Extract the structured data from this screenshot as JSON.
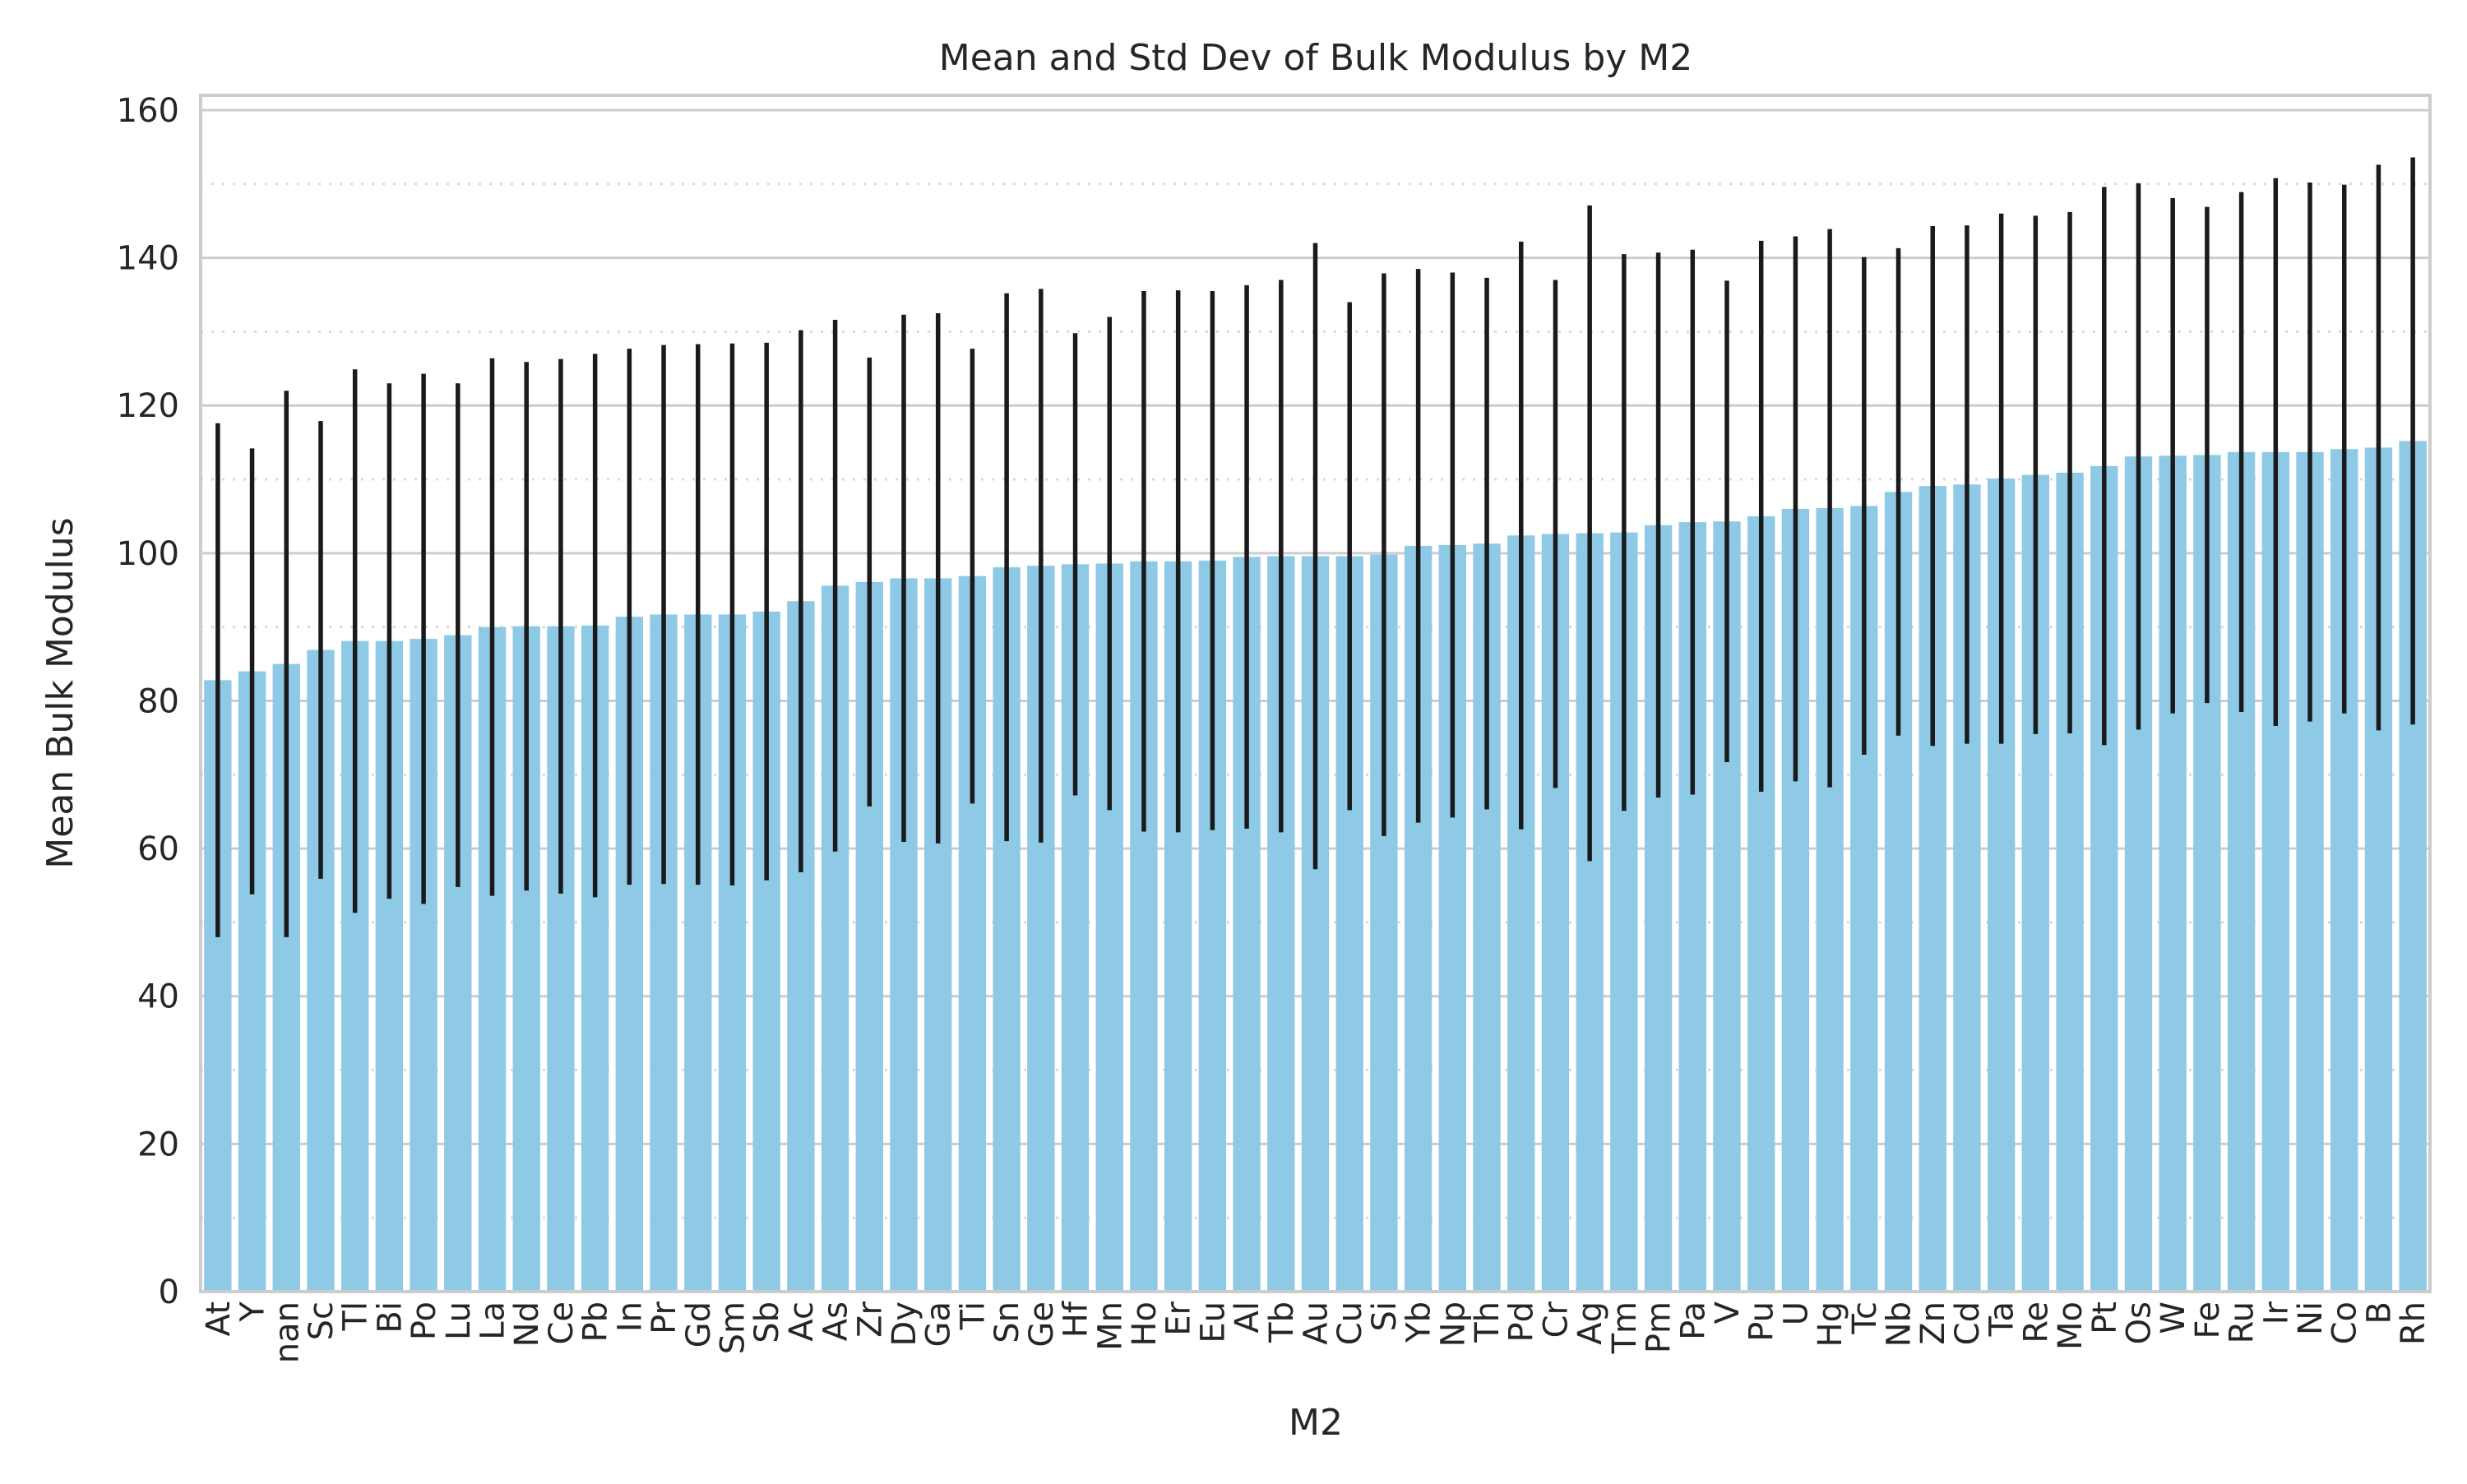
{
  "chart_data": {
    "type": "bar",
    "title": "Mean and Std Dev of Bulk Modulus by M2",
    "xlabel": "M2",
    "ylabel": "Mean Bulk Modulus",
    "ylim": [
      0,
      162
    ],
    "yticks": [
      0,
      20,
      40,
      60,
      80,
      100,
      120,
      140,
      160
    ],
    "grid": true,
    "bar_color": "#8ecae6",
    "error_color": "#1a1a1a",
    "categories": [
      "At",
      "Y",
      "nan",
      "Sc",
      "Tl",
      "Bi",
      "Po",
      "Lu",
      "La",
      "Nd",
      "Ce",
      "Pb",
      "In",
      "Pr",
      "Gd",
      "Sm",
      "Sb",
      "Ac",
      "As",
      "Zr",
      "Dy",
      "Ga",
      "Ti",
      "Sn",
      "Ge",
      "Hf",
      "Mn",
      "Ho",
      "Er",
      "Eu",
      "Al",
      "Tb",
      "Au",
      "Cu",
      "Si",
      "Yb",
      "Np",
      "Th",
      "Pd",
      "Cr",
      "Ag",
      "Tm",
      "Pm",
      "Pa",
      "V",
      "Pu",
      "U",
      "Hg",
      "Tc",
      "Nb",
      "Zn",
      "Cd",
      "Ta",
      "Re",
      "Mo",
      "Pt",
      "Os",
      "W",
      "Fe",
      "Ru",
      "Ir",
      "Ni",
      "Co",
      "B",
      "Rh"
    ],
    "values": [
      82.8,
      84.0,
      85.0,
      86.9,
      88.1,
      88.1,
      88.4,
      88.9,
      90.0,
      90.1,
      90.1,
      90.2,
      91.4,
      91.7,
      91.7,
      91.7,
      92.1,
      93.5,
      95.6,
      96.1,
      96.6,
      96.6,
      96.9,
      98.1,
      98.3,
      98.5,
      98.6,
      98.9,
      98.9,
      99.0,
      99.5,
      99.6,
      99.6,
      99.6,
      99.8,
      101.0,
      101.1,
      101.3,
      102.4,
      102.6,
      102.7,
      102.8,
      103.8,
      104.2,
      104.3,
      105.0,
      106.0,
      106.1,
      106.4,
      108.3,
      109.1,
      109.3,
      110.1,
      110.6,
      110.9,
      111.8,
      113.1,
      113.2,
      113.3,
      113.7,
      113.7,
      113.7,
      114.1,
      114.3,
      115.2
    ],
    "std": [
      34.8,
      30.2,
      37.0,
      31.0,
      36.8,
      34.9,
      35.9,
      34.1,
      36.4,
      35.8,
      36.2,
      36.8,
      36.3,
      36.5,
      36.6,
      36.7,
      36.4,
      36.7,
      36.0,
      30.4,
      35.7,
      35.9,
      30.8,
      37.1,
      37.5,
      31.3,
      33.4,
      36.6,
      36.7,
      36.5,
      36.8,
      37.4,
      42.4,
      34.4,
      38.1,
      37.5,
      36.9,
      36.0,
      39.8,
      34.4,
      44.4,
      37.7,
      36.9,
      36.9,
      32.6,
      37.3,
      36.9,
      37.8,
      33.7,
      33.0,
      35.2,
      35.1,
      35.9,
      35.1,
      35.3,
      37.8,
      37.0,
      34.9,
      33.6,
      35.2,
      37.1,
      36.5,
      35.8,
      38.3,
      38.4
    ]
  }
}
